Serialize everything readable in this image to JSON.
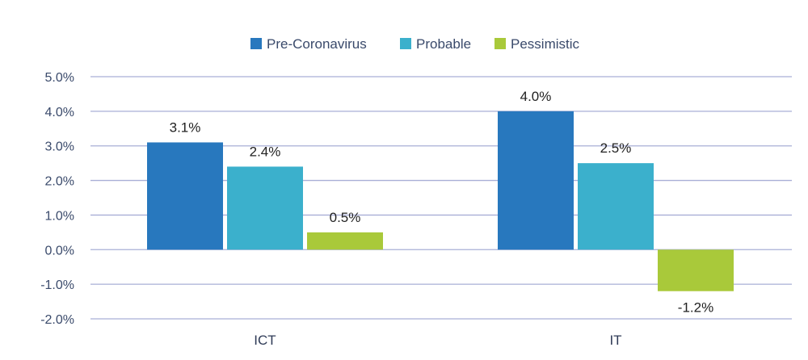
{
  "chart_data": {
    "type": "bar",
    "categories": [
      "ICT",
      "IT"
    ],
    "series": [
      {
        "name": "Pre-Coronavirus",
        "values": [
          3.1,
          4.0
        ],
        "labels": [
          "3.1%",
          "4.0%"
        ],
        "color": "#2878be"
      },
      {
        "name": "Probable",
        "values": [
          2.4,
          2.5
        ],
        "labels": [
          "2.4%",
          "2.5%"
        ],
        "color": "#3bb0cc"
      },
      {
        "name": "Pessimistic",
        "values": [
          0.5,
          -1.2
        ],
        "labels": [
          "0.5%",
          "-1.2%"
        ],
        "color": "#a9c93a"
      }
    ],
    "yticks": [
      "-2.0%",
      "-1.0%",
      "0.0%",
      "1.0%",
      "2.0%",
      "3.0%",
      "4.0%",
      "5.0%"
    ],
    "ylim": [
      -2,
      5
    ],
    "grid": true,
    "legend_position": "top-center",
    "gridline_color": "#a9afd6"
  }
}
